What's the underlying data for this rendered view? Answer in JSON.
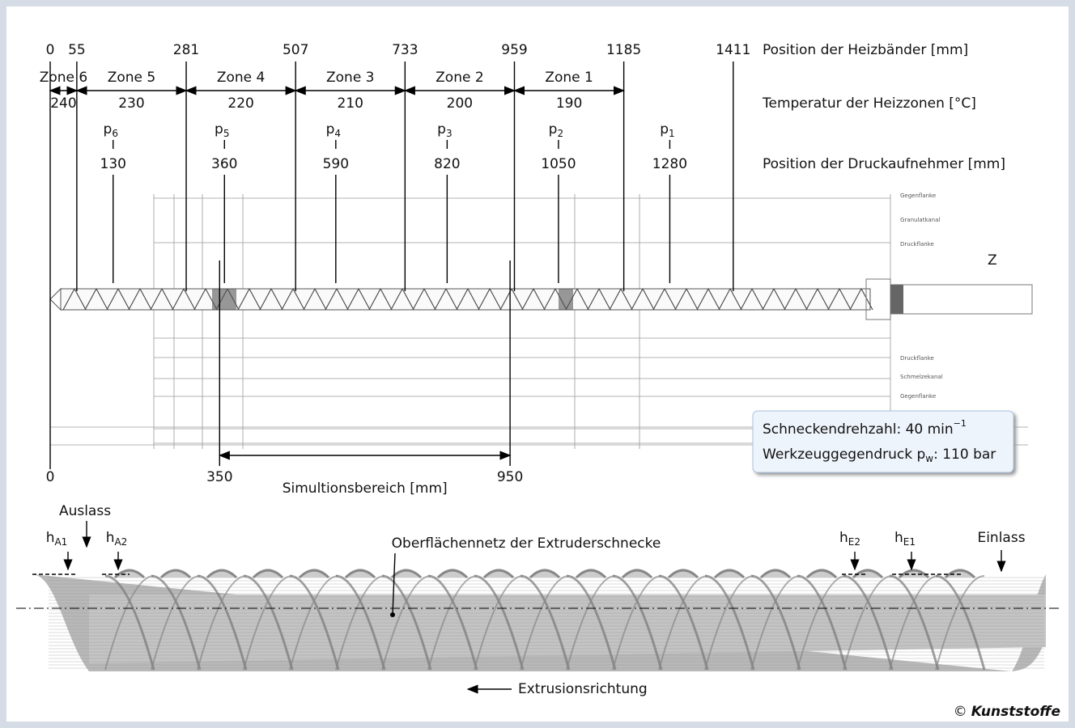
{
  "heating_bands": {
    "label": "Position der Heizbänder [mm]",
    "positions": [
      0,
      55,
      281,
      507,
      733,
      959,
      1185,
      1411
    ]
  },
  "zones": {
    "label": "Temperatur der Heizzonen [°C]",
    "items": [
      {
        "name": "Zone 6",
        "temperature": 240
      },
      {
        "name": "Zone 5",
        "temperature": 230
      },
      {
        "name": "Zone 4",
        "temperature": 220
      },
      {
        "name": "Zone 3",
        "temperature": 210
      },
      {
        "name": "Zone 2",
        "temperature": 200
      },
      {
        "name": "Zone 1",
        "temperature": 190
      }
    ]
  },
  "pressure_sensors": {
    "label": "Position der Druckaufnehmer [mm]",
    "items": [
      {
        "symbol": "p",
        "index": "6",
        "position": 130
      },
      {
        "symbol": "p",
        "index": "5",
        "position": 360
      },
      {
        "symbol": "p",
        "index": "4",
        "position": 590
      },
      {
        "symbol": "p",
        "index": "3",
        "position": 820
      },
      {
        "symbol": "p",
        "index": "2",
        "position": 1050
      },
      {
        "symbol": "p",
        "index": "1",
        "position": 1280
      }
    ]
  },
  "drawing": {
    "detail": "Z",
    "labels": [
      "Gegenflanke",
      "Granulatkanal",
      "Druckflanke",
      "Druckflanke",
      "Schmelzekanal",
      "Gegenflanke"
    ]
  },
  "info_box": {
    "speed_label": "Schneckendrehzahl: 40 min",
    "speed_exp": "−1",
    "pressure_label": "Werkzeuggegendruck p",
    "pressure_sub": "w",
    "pressure_rest": ": 110 bar"
  },
  "simulation": {
    "label": "Simultionsbereich [mm]",
    "origin": 0,
    "start": 350,
    "end": 950
  },
  "mesh": {
    "title": "Oberflächennetz der Extruderschnecke",
    "outlet": "Auslass",
    "inlet": "Einlass",
    "direction": "Extrusionsrichtung",
    "heights": [
      {
        "symbol": "h",
        "sub": "A1"
      },
      {
        "symbol": "h",
        "sub": "A2"
      },
      {
        "symbol": "h",
        "sub": "E2"
      },
      {
        "symbol": "h",
        "sub": "E1"
      }
    ]
  },
  "copyright": {
    "symbol": "©",
    "source": "Kunststoffe"
  }
}
